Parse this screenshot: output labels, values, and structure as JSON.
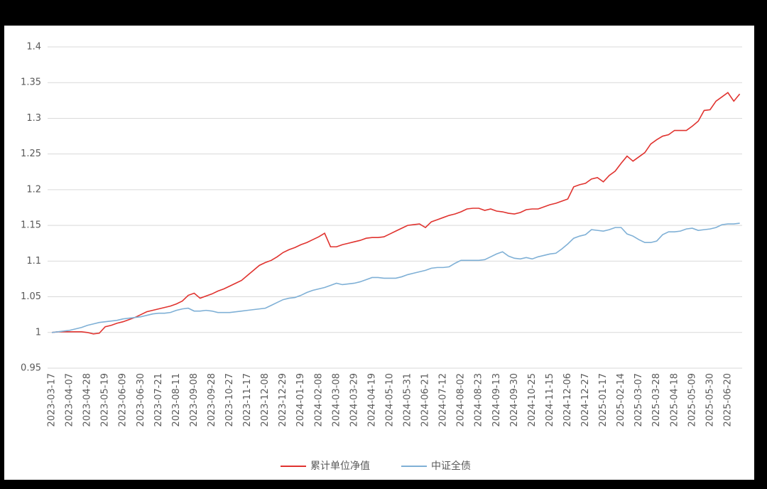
{
  "chart_data": {
    "type": "line",
    "categories": [
      "2023-03-17",
      null,
      null,
      "2023-04-07",
      null,
      null,
      "2023-04-28",
      null,
      null,
      "2023-05-19",
      null,
      null,
      "2023-06-09",
      null,
      null,
      "2023-06-30",
      null,
      null,
      "2023-07-21",
      null,
      null,
      "2023-08-11",
      null,
      null,
      "2023-09-08",
      null,
      null,
      "2023-09-28",
      null,
      null,
      "2023-10-27",
      null,
      null,
      "2023-11-17",
      null,
      null,
      "2023-12-08",
      null,
      null,
      "2023-12-29",
      null,
      null,
      "2024-01-19",
      null,
      null,
      "2024-02-08",
      null,
      null,
      "2024-03-08",
      null,
      null,
      "2024-03-29",
      null,
      null,
      "2024-04-19",
      null,
      null,
      "2024-05-10",
      null,
      null,
      "2024-05-31",
      null,
      null,
      "2024-06-21",
      null,
      null,
      "2024-07-12",
      null,
      null,
      "2024-08-02",
      null,
      null,
      "2024-08-23",
      null,
      null,
      "2024-09-13",
      null,
      null,
      "2024-09-30",
      null,
      null,
      "2024-10-25",
      null,
      null,
      "2024-11-15",
      null,
      null,
      "2024-12-06",
      null,
      null,
      "2024-12-27",
      null,
      null,
      "2025-01-17",
      null,
      null,
      "2025-02-14",
      null,
      null,
      "2025-03-07",
      null,
      null,
      "2025-03-28",
      null,
      null,
      "2025-04-18",
      null,
      null,
      "2025-05-09",
      null,
      null,
      "2025-05-30",
      null,
      null,
      "2025-06-20",
      null,
      null
    ],
    "series": [
      {
        "name": "累计单位净值",
        "color": "#e0332f",
        "values": [
          1.0,
          1.001,
          1.001,
          1.001,
          1.001,
          1.001,
          1.0,
          0.998,
          0.999,
          1.008,
          1.01,
          1.013,
          1.015,
          1.018,
          1.021,
          1.025,
          1.029,
          1.031,
          1.033,
          1.035,
          1.037,
          1.04,
          1.044,
          1.052,
          1.055,
          1.048,
          1.051,
          1.054,
          1.058,
          1.061,
          1.065,
          1.069,
          1.073,
          1.08,
          1.087,
          1.094,
          1.098,
          1.101,
          1.106,
          1.112,
          1.116,
          1.119,
          1.123,
          1.126,
          1.13,
          1.134,
          1.139,
          1.12,
          1.12,
          1.123,
          1.125,
          1.127,
          1.129,
          1.132,
          1.133,
          1.133,
          1.134,
          1.138,
          1.142,
          1.146,
          1.15,
          1.151,
          1.152,
          1.147,
          1.155,
          1.158,
          1.161,
          1.164,
          1.166,
          1.169,
          1.173,
          1.174,
          1.174,
          1.171,
          1.173,
          1.17,
          1.169,
          1.167,
          1.166,
          1.168,
          1.172,
          1.173,
          1.173,
          1.176,
          1.179,
          1.181,
          1.184,
          1.187,
          1.204,
          1.207,
          1.209,
          1.215,
          1.217,
          1.211,
          1.22,
          1.226,
          1.237,
          1.247,
          1.24,
          1.246,
          1.252,
          1.264,
          1.27,
          1.275,
          1.277,
          1.283,
          1.283,
          1.283,
          1.289,
          1.296,
          1.311,
          1.312,
          1.324,
          1.33,
          1.336,
          1.324,
          1.334
        ]
      },
      {
        "name": "中证全债",
        "color": "#7fb0d6",
        "values": [
          1.0,
          1.001,
          1.002,
          1.003,
          1.005,
          1.007,
          1.01,
          1.012,
          1.014,
          1.015,
          1.016,
          1.017,
          1.019,
          1.02,
          1.021,
          1.022,
          1.024,
          1.026,
          1.027,
          1.027,
          1.028,
          1.031,
          1.033,
          1.034,
          1.03,
          1.03,
          1.031,
          1.03,
          1.028,
          1.028,
          1.028,
          1.029,
          1.03,
          1.031,
          1.032,
          1.033,
          1.034,
          1.038,
          1.042,
          1.046,
          1.048,
          1.049,
          1.052,
          1.056,
          1.059,
          1.061,
          1.063,
          1.066,
          1.069,
          1.067,
          1.068,
          1.069,
          1.071,
          1.074,
          1.077,
          1.077,
          1.076,
          1.076,
          1.076,
          1.078,
          1.081,
          1.083,
          1.085,
          1.087,
          1.09,
          1.091,
          1.091,
          1.092,
          1.097,
          1.101,
          1.101,
          1.101,
          1.101,
          1.102,
          1.106,
          1.11,
          1.113,
          1.107,
          1.104,
          1.103,
          1.105,
          1.103,
          1.106,
          1.108,
          1.11,
          1.111,
          1.117,
          1.124,
          1.132,
          1.135,
          1.137,
          1.144,
          1.143,
          1.142,
          1.144,
          1.147,
          1.147,
          1.138,
          1.135,
          1.13,
          1.126,
          1.126,
          1.128,
          1.137,
          1.141,
          1.141,
          1.142,
          1.145,
          1.146,
          1.143,
          1.144,
          1.145,
          1.147,
          1.151,
          1.152,
          1.152,
          1.153
        ]
      }
    ],
    "ylim": [
      0.95,
      1.4
    ],
    "yticks": [
      0.95,
      1,
      1.05,
      1.1,
      1.15,
      1.2,
      1.25,
      1.3,
      1.35,
      1.4
    ],
    "grid": true,
    "legend": "bottom"
  }
}
